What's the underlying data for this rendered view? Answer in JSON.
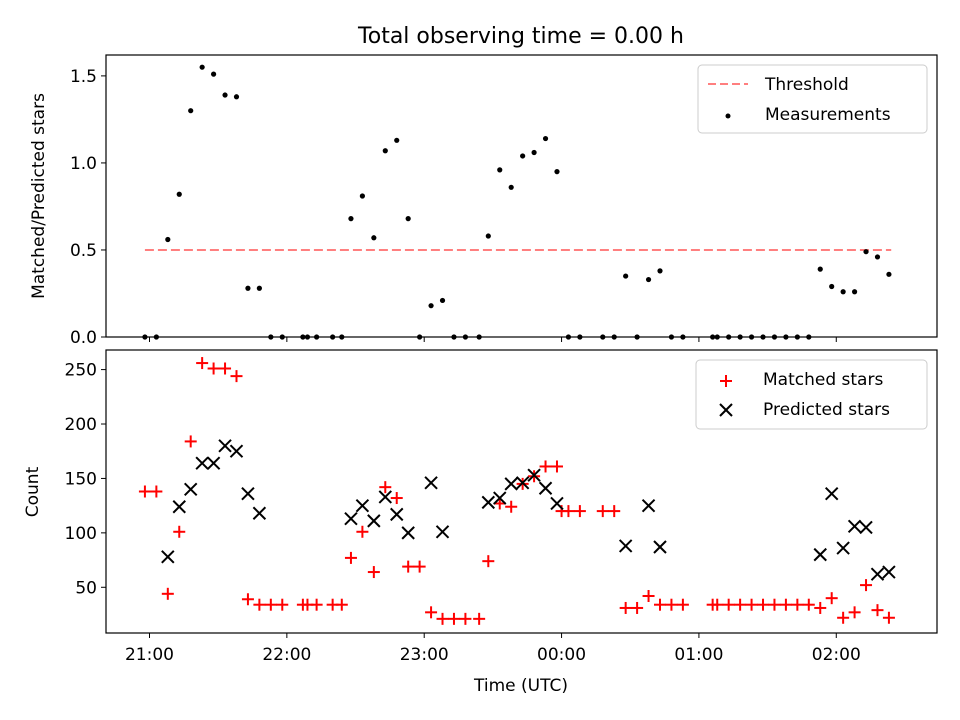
{
  "figure": {
    "title": "Total observing time = 0.00 h"
  },
  "chart_data": [
    {
      "type": "scatter",
      "ylabel": "Matched/Predicted stars",
      "xlabel": "",
      "ylim": [
        0,
        1.62
      ],
      "yticks": [
        0.0,
        0.5,
        1.0,
        1.5
      ],
      "ytick_labels": [
        "0.0",
        "0.5",
        "1.0",
        "1.5"
      ],
      "grid": false,
      "legend": {
        "placement": "upper right",
        "entries": [
          "Threshold",
          "Measurements"
        ]
      },
      "colors": {
        "threshold": "#ff7f7f",
        "measurements": "#000000"
      },
      "threshold": {
        "name": "Threshold",
        "y": 0.5,
        "x_start": "20:58",
        "x_end": "02:24"
      },
      "series": [
        {
          "name": "Measurements",
          "points": [
            [
              "20:58",
              0.0
            ],
            [
              "21:03",
              0.0
            ],
            [
              "21:08",
              0.56
            ],
            [
              "21:13",
              0.82
            ],
            [
              "21:18",
              1.3
            ],
            [
              "21:23",
              1.55
            ],
            [
              "21:28",
              1.51
            ],
            [
              "21:33",
              1.39
            ],
            [
              "21:38",
              1.38
            ],
            [
              "21:43",
              0.28
            ],
            [
              "21:48",
              0.28
            ],
            [
              "21:53",
              0.0
            ],
            [
              "21:58",
              0.0
            ],
            [
              "22:07",
              0.0
            ],
            [
              "22:09",
              0.0
            ],
            [
              "22:13",
              0.0
            ],
            [
              "22:20",
              0.0
            ],
            [
              "22:24",
              0.0
            ],
            [
              "22:28",
              0.68
            ],
            [
              "22:33",
              0.81
            ],
            [
              "22:38",
              0.57
            ],
            [
              "22:43",
              1.07
            ],
            [
              "22:48",
              1.13
            ],
            [
              "22:53",
              0.68
            ],
            [
              "22:58",
              0.0
            ],
            [
              "23:03",
              0.18
            ],
            [
              "23:08",
              0.21
            ],
            [
              "23:13",
              0.0
            ],
            [
              "23:18",
              0.0
            ],
            [
              "23:24",
              0.0
            ],
            [
              "23:28",
              0.58
            ],
            [
              "23:33",
              0.96
            ],
            [
              "23:38",
              0.86
            ],
            [
              "23:43",
              1.04
            ],
            [
              "23:48",
              1.06
            ],
            [
              "23:53",
              1.14
            ],
            [
              "23:58",
              0.95
            ],
            [
              "00:03",
              0.0
            ],
            [
              "00:08",
              0.0
            ],
            [
              "00:18",
              0.0
            ],
            [
              "00:23",
              0.0
            ],
            [
              "00:28",
              0.35
            ],
            [
              "00:33",
              0.0
            ],
            [
              "00:38",
              0.33
            ],
            [
              "00:43",
              0.38
            ],
            [
              "00:48",
              0.0
            ],
            [
              "00:53",
              0.0
            ],
            [
              "01:06",
              0.0
            ],
            [
              "01:08",
              0.0
            ],
            [
              "01:13",
              0.0
            ],
            [
              "01:18",
              0.0
            ],
            [
              "01:23",
              0.0
            ],
            [
              "01:28",
              0.0
            ],
            [
              "01:33",
              0.0
            ],
            [
              "01:38",
              0.0
            ],
            [
              "01:43",
              0.0
            ],
            [
              "01:48",
              0.0
            ],
            [
              "01:53",
              0.39
            ],
            [
              "01:58",
              0.29
            ],
            [
              "02:03",
              0.26
            ],
            [
              "02:08",
              0.26
            ],
            [
              "02:13",
              0.49
            ],
            [
              "02:18",
              0.46
            ],
            [
              "02:23",
              0.36
            ]
          ]
        }
      ]
    },
    {
      "type": "scatter",
      "ylabel": "Count",
      "xlabel": "Time (UTC)",
      "ylim": [
        8,
        268
      ],
      "yticks": [
        50,
        100,
        150,
        200,
        250
      ],
      "ytick_labels": [
        "50",
        "100",
        "150",
        "200",
        "250"
      ],
      "xlim": [
        "20:41",
        "02:44"
      ],
      "xticks": [
        "21:00",
        "22:00",
        "23:00",
        "00:00",
        "01:00",
        "02:00"
      ],
      "xtick_labels": [
        "21:00",
        "22:00",
        "23:00",
        "00:00",
        "01:00",
        "02:00"
      ],
      "grid": false,
      "legend": {
        "placement": "upper right",
        "entries": [
          "Matched stars",
          "Predicted stars"
        ]
      },
      "colors": {
        "matched": "#ff0000",
        "predicted": "#000000"
      },
      "series": [
        {
          "name": "Matched stars",
          "marker": "plus",
          "points": [
            [
              "20:58",
              138
            ],
            [
              "21:03",
              138
            ],
            [
              "21:08",
              44
            ],
            [
              "21:13",
              101
            ],
            [
              "21:18",
              184
            ],
            [
              "21:23",
              256
            ],
            [
              "21:28",
              251
            ],
            [
              "21:33",
              251
            ],
            [
              "21:38",
              244
            ],
            [
              "21:43",
              39
            ],
            [
              "21:48",
              34
            ],
            [
              "21:53",
              34
            ],
            [
              "21:58",
              34
            ],
            [
              "22:07",
              34
            ],
            [
              "22:09",
              34
            ],
            [
              "22:13",
              34
            ],
            [
              "22:20",
              34
            ],
            [
              "22:24",
              34
            ],
            [
              "22:28",
              77
            ],
            [
              "22:33",
              101
            ],
            [
              "22:38",
              64
            ],
            [
              "22:43",
              142
            ],
            [
              "22:48",
              132
            ],
            [
              "22:53",
              69
            ],
            [
              "22:58",
              69
            ],
            [
              "23:03",
              27
            ],
            [
              "23:08",
              21
            ],
            [
              "23:13",
              21
            ],
            [
              "23:18",
              21
            ],
            [
              "23:24",
              21
            ],
            [
              "23:28",
              74
            ],
            [
              "23:33",
              127
            ],
            [
              "23:38",
              124
            ],
            [
              "23:43",
              145
            ],
            [
              "23:48",
              152
            ],
            [
              "23:53",
              161
            ],
            [
              "23:58",
              161
            ],
            [
              "00:00",
              120
            ],
            [
              "00:03",
              120
            ],
            [
              "00:08",
              120
            ],
            [
              "00:18",
              120
            ],
            [
              "00:23",
              120
            ],
            [
              "00:28",
              31
            ],
            [
              "00:33",
              31
            ],
            [
              "00:38",
              42
            ],
            [
              "00:43",
              34
            ],
            [
              "00:48",
              34
            ],
            [
              "00:53",
              34
            ],
            [
              "01:06",
              34
            ],
            [
              "01:08",
              34
            ],
            [
              "01:13",
              34
            ],
            [
              "01:18",
              34
            ],
            [
              "01:23",
              34
            ],
            [
              "01:28",
              34
            ],
            [
              "01:33",
              34
            ],
            [
              "01:38",
              34
            ],
            [
              "01:43",
              34
            ],
            [
              "01:48",
              34
            ],
            [
              "01:53",
              31
            ],
            [
              "01:58",
              40
            ],
            [
              "02:03",
              22
            ],
            [
              "02:08",
              27
            ],
            [
              "02:13",
              52
            ],
            [
              "02:18",
              29
            ],
            [
              "02:23",
              22
            ]
          ]
        },
        {
          "name": "Predicted stars",
          "marker": "x",
          "points": [
            [
              "21:08",
              78
            ],
            [
              "21:13",
              124
            ],
            [
              "21:18",
              140
            ],
            [
              "21:23",
              164
            ],
            [
              "21:28",
              164
            ],
            [
              "21:33",
              180
            ],
            [
              "21:38",
              175
            ],
            [
              "21:43",
              136
            ],
            [
              "21:48",
              118
            ],
            [
              "22:28",
              113
            ],
            [
              "22:33",
              125
            ],
            [
              "22:38",
              111
            ],
            [
              "22:43",
              133
            ],
            [
              "22:48",
              117
            ],
            [
              "22:53",
              100
            ],
            [
              "23:03",
              146
            ],
            [
              "23:08",
              101
            ],
            [
              "23:28",
              128
            ],
            [
              "23:33",
              132
            ],
            [
              "23:38",
              145
            ],
            [
              "23:43",
              146
            ],
            [
              "23:48",
              153
            ],
            [
              "23:53",
              141
            ],
            [
              "23:58",
              127
            ],
            [
              "00:28",
              88
            ],
            [
              "00:38",
              125
            ],
            [
              "00:43",
              87
            ],
            [
              "01:53",
              80
            ],
            [
              "01:58",
              136
            ],
            [
              "02:03",
              86
            ],
            [
              "02:08",
              106
            ],
            [
              "02:13",
              105
            ],
            [
              "02:18",
              62
            ],
            [
              "02:23",
              64
            ]
          ]
        }
      ]
    }
  ]
}
